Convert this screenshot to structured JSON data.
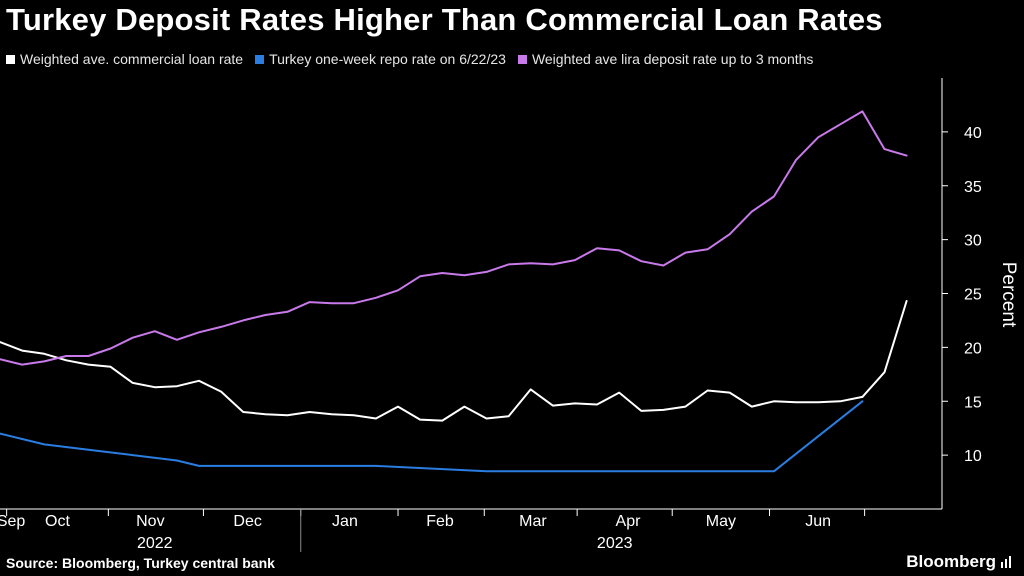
{
  "header": {
    "title": "Turkey Deposit Rates Higher Than Commercial Loan Rates"
  },
  "footer": {
    "source": "Source: Bloomberg, Turkey central bank",
    "brand": "Bloomberg"
  },
  "chart_data": {
    "type": "line",
    "title": "Turkey Deposit Rates Higher Than Commercial Loan Rates",
    "xlabel": "",
    "ylabel": "Percent",
    "ylim": [
      5,
      45
    ],
    "yticks": [
      10,
      15,
      20,
      25,
      30,
      35,
      40
    ],
    "grid": false,
    "legend_position": "top",
    "x_unit": "weeks since 2022-09-02",
    "xlim": [
      0,
      42.6
    ],
    "month_labels": [
      {
        "label": "Sep",
        "x": 0.5
      },
      {
        "label": "Oct",
        "x": 2.6
      },
      {
        "label": "Nov",
        "x": 6.8
      },
      {
        "label": "Dec",
        "x": 11.2
      },
      {
        "label": "Jan",
        "x": 15.6
      },
      {
        "label": "Feb",
        "x": 19.9
      },
      {
        "label": "Mar",
        "x": 24.1
      },
      {
        "label": "Apr",
        "x": 28.4
      },
      {
        "label": "May",
        "x": 32.6
      },
      {
        "label": "Jun",
        "x": 37.0
      }
    ],
    "month_ticks": [
      0.3,
      4.9,
      9.2,
      13.6,
      18.0,
      21.9,
      26.1,
      30.4,
      34.8,
      39.1
    ],
    "year_labels": [
      {
        "label": "2022",
        "x": 7.0
      },
      {
        "label": "2023",
        "x": 27.8
      }
    ],
    "year_divider": 13.6,
    "series": [
      {
        "name": "Weighted ave. commercial loan rate",
        "color": "#ffffff",
        "x": [
          0,
          1,
          2,
          3,
          4,
          5,
          6,
          7,
          8,
          9,
          10,
          11,
          12,
          13,
          14,
          15,
          16,
          17,
          18,
          19,
          20,
          21,
          22,
          23,
          24,
          25,
          26,
          27,
          28,
          29,
          30,
          31,
          32,
          33,
          34,
          35,
          36,
          37,
          38,
          39,
          40,
          41
        ],
        "values": [
          20.5,
          19.7,
          19.4,
          18.8,
          18.4,
          18.2,
          16.7,
          16.3,
          16.4,
          16.9,
          15.9,
          14.0,
          13.8,
          13.7,
          14.0,
          13.8,
          13.7,
          13.4,
          14.5,
          13.3,
          13.2,
          14.5,
          13.4,
          13.6,
          16.1,
          14.6,
          14.8,
          14.7,
          15.8,
          14.1,
          14.2,
          14.5,
          16.0,
          15.8,
          14.5,
          15.0,
          14.9,
          14.9,
          15.0,
          15.4,
          17.7,
          24.3
        ]
      },
      {
        "name": "Turkey one-week repo rate on 6/22/23",
        "color": "#2a7de1",
        "x": [
          0,
          2,
          4,
          6,
          8,
          9,
          10,
          13,
          17,
          22,
          26,
          35,
          39
        ],
        "values": [
          12.0,
          11.0,
          10.5,
          10.0,
          9.5,
          9.0,
          9.0,
          9.0,
          9.0,
          8.5,
          8.5,
          8.5,
          15.0
        ]
      },
      {
        "name": "Weighted ave lira deposit rate up to 3 months",
        "color": "#c879ea",
        "x": [
          0,
          1,
          2,
          3,
          4,
          5,
          6,
          7,
          8,
          9,
          10,
          11,
          12,
          13,
          14,
          15,
          16,
          17,
          18,
          19,
          20,
          21,
          22,
          23,
          24,
          25,
          26,
          27,
          28,
          29,
          30,
          31,
          32,
          33,
          34,
          35,
          36,
          37,
          38,
          39,
          40,
          41
        ],
        "values": [
          18.9,
          18.4,
          18.7,
          19.2,
          19.2,
          19.9,
          20.9,
          21.5,
          20.7,
          21.4,
          21.9,
          22.5,
          23.0,
          23.3,
          24.2,
          24.1,
          24.1,
          24.6,
          25.3,
          26.6,
          26.9,
          26.7,
          27.0,
          27.7,
          27.8,
          27.7,
          28.1,
          29.2,
          29.0,
          28.0,
          27.6,
          28.8,
          29.1,
          30.5,
          32.6,
          34.0,
          37.4,
          39.5,
          40.7,
          41.9,
          38.4,
          37.8
        ]
      }
    ]
  }
}
